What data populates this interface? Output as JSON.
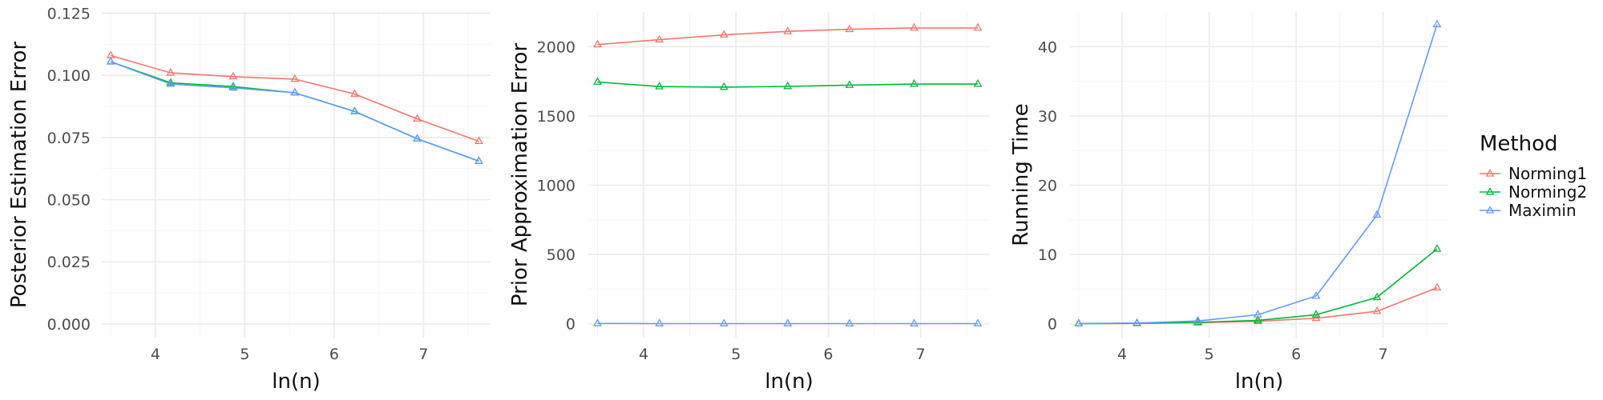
{
  "legend": {
    "title": "Method",
    "items": [
      {
        "label": "Norming1",
        "color": "#F8766D"
      },
      {
        "label": "Norming2",
        "color": "#00BA38"
      },
      {
        "label": "Maximin",
        "color": "#619CFF"
      }
    ]
  },
  "chart_data": [
    {
      "type": "line",
      "xlabel": "ln(n)",
      "ylabel": "Posterior Estimation Error",
      "xlim": [
        3.4,
        7.75
      ],
      "ylim": [
        -0.0055,
        0.1255
      ],
      "xticks": [
        4,
        5,
        6,
        7
      ],
      "yticks": [
        0.0,
        0.025,
        0.05,
        0.075,
        0.1,
        0.125
      ],
      "ytick_labels": [
        "0.000",
        "0.025",
        "0.050",
        "0.075",
        "0.100",
        "0.125"
      ],
      "x": [
        3.5,
        4.17,
        4.87,
        5.56,
        6.23,
        6.93,
        7.62
      ],
      "series": [
        {
          "name": "Norming1",
          "color": "#F8766D",
          "values": [
            0.108,
            0.101,
            0.0995,
            0.0985,
            0.0925,
            0.0825,
            0.0735
          ]
        },
        {
          "name": "Norming2",
          "color": "#00BA38",
          "values": [
            0.1055,
            0.097,
            0.0955,
            0.093,
            0.0855,
            0.0745,
            0.0655
          ]
        },
        {
          "name": "Maximin",
          "color": "#619CFF",
          "values": [
            0.1055,
            0.0965,
            0.095,
            0.093,
            0.0855,
            0.0745,
            0.0655
          ]
        }
      ]
    },
    {
      "type": "line",
      "xlabel": "ln(n)",
      "ylabel": "Prior Approximation Error",
      "xlim": [
        3.4,
        7.75
      ],
      "ylim": [
        -100,
        2250
      ],
      "xticks": [
        4,
        5,
        6,
        7
      ],
      "yticks": [
        0,
        500,
        1000,
        1500,
        2000
      ],
      "ytick_labels": [
        "0",
        "500",
        "1000",
        "1500",
        "2000"
      ],
      "x": [
        3.5,
        4.17,
        4.87,
        5.56,
        6.23,
        6.93,
        7.62
      ],
      "series": [
        {
          "name": "Norming1",
          "color": "#F8766D",
          "values": [
            2015,
            2050,
            2085,
            2110,
            2125,
            2135,
            2135
          ]
        },
        {
          "name": "Norming2",
          "color": "#00BA38",
          "values": [
            1745,
            1712,
            1708,
            1713,
            1722,
            1730,
            1730
          ]
        },
        {
          "name": "Maximin",
          "color": "#619CFF",
          "values": [
            2,
            1,
            1,
            1,
            1,
            1,
            1
          ]
        }
      ]
    },
    {
      "type": "line",
      "xlabel": "ln(n)",
      "ylabel": "Running Time",
      "xlim": [
        3.4,
        7.75
      ],
      "ylim": [
        -2,
        45
      ],
      "xticks": [
        4,
        5,
        6,
        7
      ],
      "yticks": [
        0,
        10,
        20,
        30,
        40
      ],
      "ytick_labels": [
        "0",
        "10",
        "20",
        "30",
        "40"
      ],
      "x": [
        3.5,
        4.17,
        4.87,
        5.56,
        6.23,
        6.93,
        7.62
      ],
      "series": [
        {
          "name": "Norming1",
          "color": "#F8766D",
          "values": [
            0.02,
            0.05,
            0.15,
            0.35,
            0.8,
            1.8,
            5.2
          ]
        },
        {
          "name": "Norming2",
          "color": "#00BA38",
          "values": [
            0.02,
            0.06,
            0.2,
            0.5,
            1.3,
            3.8,
            10.8
          ]
        },
        {
          "name": "Maximin",
          "color": "#619CFF",
          "values": [
            0.03,
            0.1,
            0.4,
            1.3,
            4.0,
            15.7,
            43.2
          ]
        }
      ]
    }
  ]
}
